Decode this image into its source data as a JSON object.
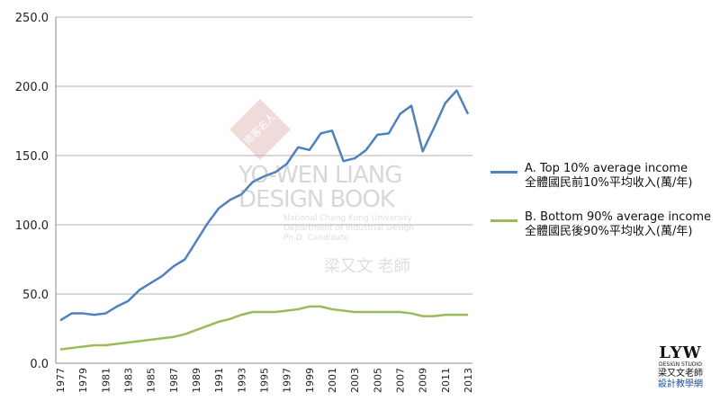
{
  "chart_data": {
    "type": "line",
    "x": [
      1977,
      1978,
      1979,
      1980,
      1981,
      1982,
      1983,
      1984,
      1985,
      1986,
      1987,
      1988,
      1989,
      1990,
      1991,
      1992,
      1993,
      1994,
      1995,
      1996,
      1997,
      1998,
      1999,
      2000,
      2001,
      2002,
      2003,
      2004,
      2005,
      2006,
      2007,
      2008,
      2009,
      2010,
      2011,
      2012,
      2013
    ],
    "x_tick_labels": [
      "1977",
      "1979",
      "1981",
      "1983",
      "1985",
      "1987",
      "1989",
      "1991",
      "1993",
      "1995",
      "1997",
      "1999",
      "2001",
      "2003",
      "2005",
      "2007",
      "2009",
      "2011",
      "2013"
    ],
    "y_tick_labels": [
      "0.0",
      "50.0",
      "100.0",
      "150.0",
      "200.0",
      "250.0"
    ],
    "ylim": [
      0,
      250
    ],
    "grid": "horizontal",
    "legend_position": "right",
    "series": [
      {
        "name": "A. Top 10% average income",
        "name_zh": "全體國民前10%平均收入(萬/年)",
        "color": "#4f81bd",
        "values": [
          31,
          36,
          36,
          35,
          36,
          41,
          45,
          53,
          58,
          63,
          70,
          75,
          88,
          101,
          112,
          118,
          122,
          131,
          135,
          138,
          144,
          156,
          154,
          166,
          168,
          146,
          148,
          154,
          165,
          166,
          180,
          186,
          153,
          170,
          188,
          197,
          180
        ]
      },
      {
        "name": "B. Bottom 90% average income",
        "name_zh": "全體國民後90%平均收入(萬/年)",
        "color": "#9bbb59",
        "values": [
          10,
          11,
          12,
          13,
          13,
          14,
          15,
          16,
          17,
          18,
          19,
          21,
          24,
          27,
          30,
          32,
          35,
          37,
          37,
          37,
          38,
          39,
          41,
          41,
          39,
          38,
          37,
          37,
          37,
          37,
          37,
          36,
          34,
          34,
          35,
          35,
          35
        ]
      }
    ]
  },
  "watermark": {
    "seal": "南客名人",
    "title_line1": "YO-WEN LIANG",
    "title_line2": "DESIGN BOOK",
    "sub1": "National Cheng Kung University",
    "sub2": "Department of Industrial Design",
    "sub3": "Ph.D. Candidate",
    "cn": "梁又文 老師"
  },
  "logo": {
    "main": "LYW",
    "sub": "DESIGN STUDIO",
    "cn1": "梁又文老師",
    "cn2": "設計教學網"
  }
}
